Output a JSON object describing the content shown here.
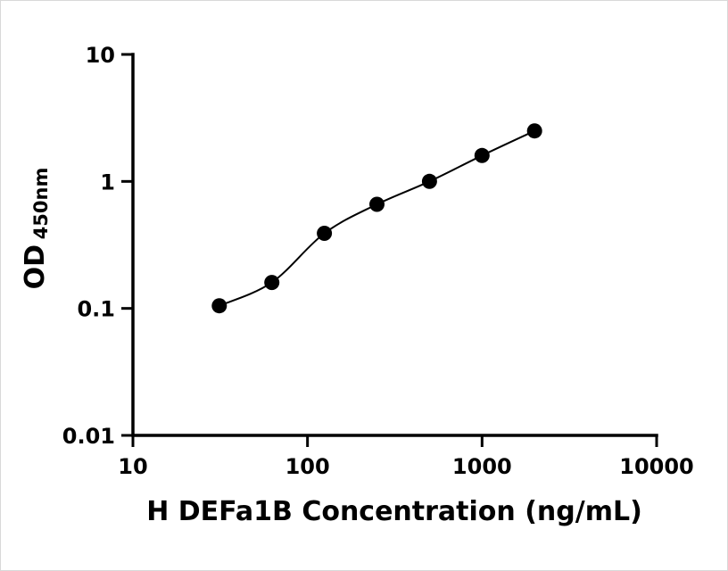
{
  "figure": {
    "background": "#ffffff",
    "axis_color": "#000000"
  },
  "chart_data": {
    "type": "scatter",
    "title": "",
    "xlabel": "H DEFa1B Concentration (ng/mL)",
    "ylabel_main": "OD",
    "ylabel_sub": "450nm",
    "x_scale": "log",
    "y_scale": "log",
    "xlim": [
      10,
      10000
    ],
    "ylim": [
      0.01,
      10
    ],
    "x_ticks": [
      10,
      100,
      1000,
      10000
    ],
    "x_tick_labels": [
      "10",
      "100",
      "1000",
      "10000"
    ],
    "y_ticks": [
      0.01,
      0.1,
      1,
      10
    ],
    "y_tick_labels": [
      "0.01",
      "0.1",
      "1",
      "10"
    ],
    "grid": false,
    "legend": null,
    "marker_color": "#000000",
    "line_color": "#000000",
    "points": [
      {
        "x": 31.25,
        "y": 0.105
      },
      {
        "x": 62.5,
        "y": 0.16
      },
      {
        "x": 125,
        "y": 0.39
      },
      {
        "x": 250,
        "y": 0.66
      },
      {
        "x": 500,
        "y": 1.0
      },
      {
        "x": 1000,
        "y": 1.6
      },
      {
        "x": 2000,
        "y": 2.5
      }
    ]
  }
}
